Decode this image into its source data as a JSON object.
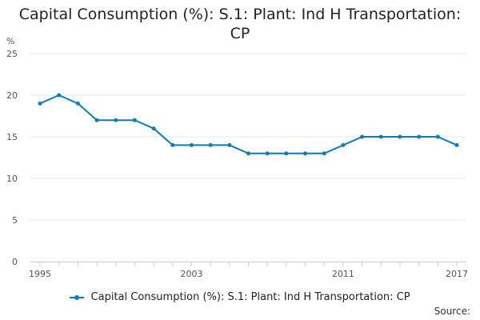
{
  "chart_data": {
    "type": "line",
    "title_lines": [
      "Capital Consumption (%): S.1: Plant: Ind H Transportation:",
      "CP"
    ],
    "ylabel": "%",
    "xlabel": "",
    "ylim": [
      0,
      25
    ],
    "yticks": [
      0,
      5,
      10,
      15,
      20,
      25
    ],
    "x": [
      1995,
      1996,
      1997,
      1998,
      1999,
      2000,
      2001,
      2002,
      2003,
      2004,
      2005,
      2006,
      2007,
      2008,
      2009,
      2010,
      2011,
      2012,
      2013,
      2014,
      2015,
      2016,
      2017
    ],
    "xtick_labels": [
      "1995",
      "2003",
      "2011",
      "2017"
    ],
    "grid": true,
    "legend_position": "bottom",
    "series": [
      {
        "name": "Capital Consumption (%): S.1: Plant: Ind H Transportation: CP",
        "color": "#0e7ab8",
        "values": [
          19,
          20,
          19,
          17,
          17,
          17,
          16,
          14,
          14,
          14,
          14,
          13,
          13,
          13,
          13,
          13,
          14,
          15,
          15,
          15,
          15,
          15,
          14
        ]
      }
    ]
  },
  "footer": {
    "source_label": "Source:"
  }
}
